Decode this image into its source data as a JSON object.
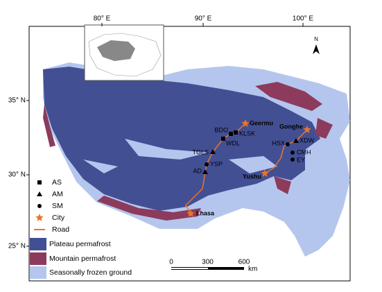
{
  "map": {
    "lon_labels": [
      "80° E",
      "90° E",
      "100° E"
    ],
    "lat_labels": [
      "35° N",
      "30° N",
      "25° N"
    ],
    "north": "N",
    "stations": [
      {
        "label": "Geermu",
        "marker": "star"
      },
      {
        "label": "BDO",
        "marker": "square"
      },
      {
        "label": "KLSK",
        "marker": "square"
      },
      {
        "label": "WDL",
        "marker": "square"
      },
      {
        "label": "TGLS",
        "marker": "triangle"
      },
      {
        "label": "YSP",
        "marker": "circle"
      },
      {
        "label": "AD",
        "marker": "triangle"
      },
      {
        "label": "Lhasa",
        "marker": "star"
      },
      {
        "label": "Gonghe",
        "marker": "star"
      },
      {
        "label": "XDW",
        "marker": "triangle"
      },
      {
        "label": "HSX",
        "marker": "circle"
      },
      {
        "label": "CMH",
        "marker": "circle"
      },
      {
        "label": "EY",
        "marker": "circle"
      },
      {
        "label": "Yushu",
        "marker": "star"
      }
    ],
    "legend": [
      {
        "label": "AS",
        "marker": "square"
      },
      {
        "label": "AM",
        "marker": "triangle"
      },
      {
        "label": "SM",
        "marker": "circle"
      },
      {
        "label": "City",
        "marker": "star"
      },
      {
        "label": "Road",
        "marker": "line"
      },
      {
        "label": "Plateau permafrost",
        "color": "#434f93"
      },
      {
        "label": "Mountain permafrost",
        "color": "#8c3b5c"
      },
      {
        "label": "Seasonally frozen ground",
        "color": "#b5c6ee"
      }
    ],
    "scale": {
      "ticks": [
        0,
        300,
        600
      ],
      "unit": "km"
    }
  }
}
